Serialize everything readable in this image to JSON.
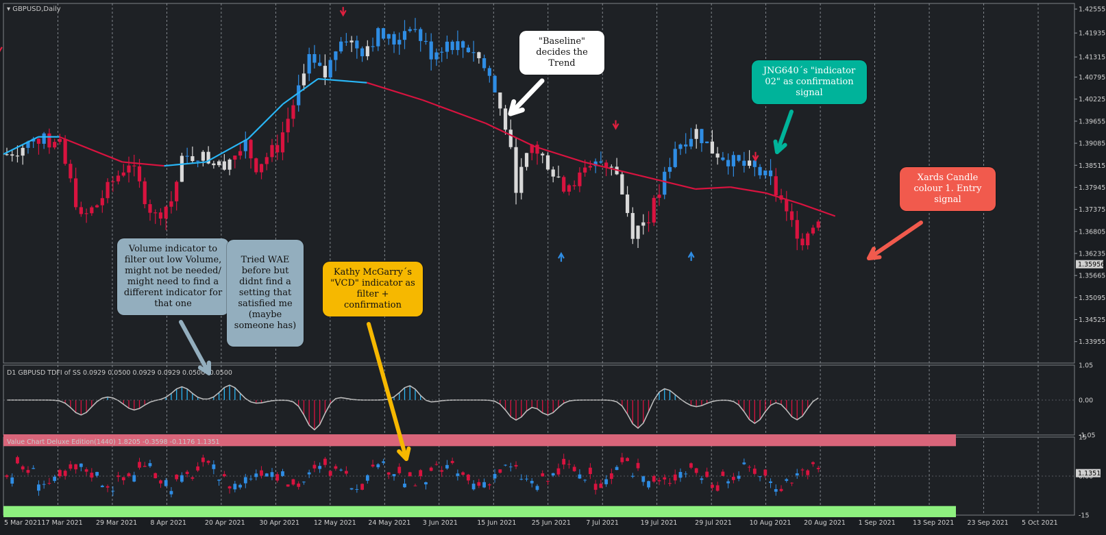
{
  "window": {
    "title": "GBPUSD,Daily",
    "price_tag": "1.35956"
  },
  "chart_data": [
    {
      "type": "candlestick",
      "title": "GBPUSD,Daily",
      "ylim": [
        1.334,
        1.427
      ],
      "y_ticks": [
        "1.42555",
        "1.41935",
        "1.41315",
        "1.40795",
        "1.40225",
        "1.39655",
        "1.39085",
        "1.38515",
        "1.37945",
        "1.37375",
        "1.36805",
        "1.36235",
        "1.35665",
        "1.35095",
        "1.34525",
        "1.33955"
      ],
      "y_tick_values": [
        1.42555,
        1.41935,
        1.41315,
        1.40795,
        1.40225,
        1.39655,
        1.39085,
        1.38515,
        1.37945,
        1.37375,
        1.36805,
        1.36235,
        1.35665,
        1.35095,
        1.34525,
        1.33955
      ],
      "x_ticks": [
        "5 Mar 2021",
        "17 Mar 2021",
        "29 Mar 2021",
        "8 Apr 2021",
        "20 Apr 2021",
        "30 Apr 2021",
        "12 May 2021",
        "24 May 2021",
        "3 Jun 2021",
        "15 Jun 2021",
        "25 Jun 2021",
        "7 Jul 2021",
        "19 Jul 2021",
        "29 Jul 2021",
        "10 Aug 2021",
        "20 Aug 2021",
        "1 Sep 2021",
        "13 Sep 2021",
        "23 Sep 2021",
        "5 Oct 2021"
      ],
      "candle_colors": {
        "bull": "#2f8de4",
        "bear": "#d8133f",
        "neutral": "#d9d9d9"
      },
      "baseline_color_up": "#29b6f6",
      "baseline_color_down": "#d8133f",
      "baseline_points": [
        [
          0,
          1.388
        ],
        [
          25,
          1.3925
        ],
        [
          40,
          1.3925
        ],
        [
          85,
          1.386
        ],
        [
          115,
          1.385
        ],
        [
          145,
          1.386
        ],
        [
          175,
          1.392
        ],
        [
          200,
          1.401
        ],
        [
          225,
          1.4075
        ],
        [
          260,
          1.4065
        ],
        [
          300,
          1.402
        ],
        [
          345,
          1.396
        ],
        [
          380,
          1.39
        ],
        [
          415,
          1.386
        ],
        [
          455,
          1.3825
        ],
        [
          495,
          1.379
        ],
        [
          520,
          1.3795
        ],
        [
          545,
          1.378
        ],
        [
          570,
          1.3752
        ],
        [
          595,
          1.372
        ]
      ],
      "candles": "generated_series",
      "signals_down": [
        [
          -3,
          1.415
        ],
        [
          243,
          1.4245
        ],
        [
          438,
          1.3952
        ],
        [
          538,
          1.387
        ]
      ],
      "signals_up": [
        [
          399,
          1.3618
        ],
        [
          492,
          1.362
        ]
      ]
    },
    {
      "type": "histogram",
      "title": "D1 GBPUSD TDFI of SS 0.0929 0.0500 0.0929 0.0929 0.0500 -0.0500",
      "ylim": [
        -1.05,
        1.05
      ],
      "y_ticks": [
        "1.05",
        "0.00",
        "-1.05"
      ],
      "y_tick_values": [
        1.05,
        0.0,
        -1.05
      ],
      "colors": {
        "up": "#29b6f6",
        "down": "#d8133f",
        "flat": "#bdbdbd"
      }
    },
    {
      "type": "candlestick",
      "title": "Value Chart Deluxe Edition(1440) 1.8205 -0.3598 -0.1176 1.1351",
      "ylim": [
        -15,
        15
      ],
      "y_ticks": [
        "15",
        "0.00",
        "-15"
      ],
      "y_tick_values": [
        15,
        0,
        -15
      ],
      "price_tag": "1.1351",
      "overbought_color": "#d9657a",
      "oversold_color": "#8ef07f"
    }
  ],
  "notes": {
    "baseline": "\"Baseline\" decides the Trend",
    "jng": "JNG640´s \"indicator 02\" as confirmation signal",
    "xards": "Xards Candle colour 1. Entry signal",
    "volume": "Volume indicator to filter out low Volume, might not be needed/ might need to find a different indicator for that one",
    "wae": "Tried WAE before but didnt find a setting that satisfied me (maybe someone has)",
    "kathy": "Kathy McGarry´s \"VCD\" indicator as filter + confirmation"
  },
  "note_colors": {
    "baseline": "#ffffff",
    "jng": "#00b39a",
    "xards": "#f15a4d",
    "volume": "#93aebe",
    "wae": "#93aebe",
    "kathy": "#f6b800"
  }
}
